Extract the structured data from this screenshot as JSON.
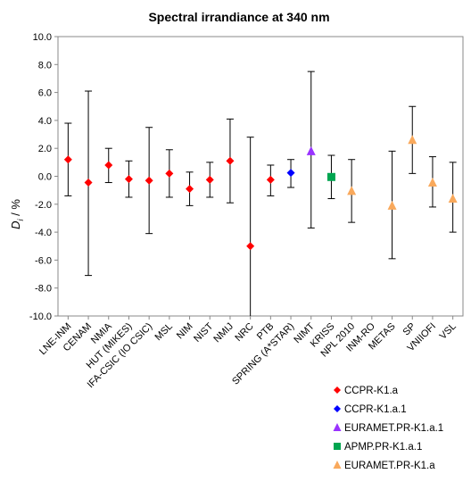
{
  "chart_data": {
    "type": "scatter",
    "title": "Spectral irrandiance at 340 nm",
    "ylabel": "D",
    "ylabel_sub": "i",
    "ylabel_unit": " / %",
    "ylim": [
      -10,
      10
    ],
    "ytick_step": 2,
    "y_ticks": [
      "-10.0",
      "-8.0",
      "-6.0",
      "-4.0",
      "-2.0",
      "0.0",
      "2.0",
      "4.0",
      "6.0",
      "8.0",
      "10.0"
    ],
    "categories": [
      "LNE-INM",
      "CENAM",
      "NMIA",
      "HUT (MIKES)",
      "IFA-CSIC (IO CSIC)",
      "MSL",
      "NIM",
      "NIST",
      "NMIJ",
      "NRC",
      "PTB",
      "SPRING (A*STAR)",
      "NIMT",
      "KRISS",
      "NPL 2010",
      "INM-RO",
      "METAS",
      "SP",
      "VNIIOFI",
      "VSL"
    ],
    "grid": false,
    "legend_position": "bottom-right",
    "series": [
      {
        "name": "CCPR-K1.a",
        "color": "#ff0000",
        "marker": "diamond",
        "points": [
          {
            "category": "LNE-INM",
            "y": 1.2,
            "low": -1.4,
            "high": 3.8
          },
          {
            "category": "CENAM",
            "y": -0.45,
            "low": -7.1,
            "high": 6.1
          },
          {
            "category": "NMIA",
            "y": 0.8,
            "low": -0.45,
            "high": 2.0
          },
          {
            "category": "HUT (MIKES)",
            "y": -0.2,
            "low": -1.5,
            "high": 1.1
          },
          {
            "category": "IFA-CSIC (IO CSIC)",
            "y": -0.3,
            "low": -4.1,
            "high": 3.5
          },
          {
            "category": "MSL",
            "y": 0.2,
            "low": -1.5,
            "high": 1.9
          },
          {
            "category": "NIM",
            "y": -0.9,
            "low": -2.1,
            "high": 0.3
          },
          {
            "category": "NIST",
            "y": -0.25,
            "low": -1.5,
            "high": 1.0
          },
          {
            "category": "NMIJ",
            "y": 1.1,
            "low": -1.9,
            "high": 4.1
          },
          {
            "category": "NRC",
            "y": -5.0,
            "low": -12.8,
            "high": 2.8
          },
          {
            "category": "PTB",
            "y": -0.25,
            "low": -1.4,
            "high": 0.8
          }
        ]
      },
      {
        "name": "CCPR-K1.a.1",
        "color": "#0000ff",
        "marker": "diamond",
        "points": [
          {
            "category": "SPRING (A*STAR)",
            "y": 0.25,
            "low": -0.8,
            "high": 1.2
          }
        ]
      },
      {
        "name": "EURAMET.PR-K1.a.1",
        "color": "#9933ff",
        "marker": "triangle",
        "points": [
          {
            "category": "NIMT",
            "y": 1.8,
            "low": -3.7,
            "high": 7.5
          }
        ]
      },
      {
        "name": "APMP.PR-K1.a.1",
        "color": "#00a550",
        "marker": "square",
        "points": [
          {
            "category": "KRISS",
            "y": -0.05,
            "low": -1.6,
            "high": 1.5
          }
        ]
      },
      {
        "name": "EURAMET.PR-K1.a",
        "color": "#f9a95c",
        "marker": "triangle",
        "points": [
          {
            "category": "NPL 2010",
            "y": -1.05,
            "low": -3.3,
            "high": 1.2
          },
          {
            "category": "METAS",
            "y": -2.1,
            "low": -5.9,
            "high": 1.8
          },
          {
            "category": "SP",
            "y": 2.6,
            "low": 0.2,
            "high": 5.0
          },
          {
            "category": "VNIIOFI",
            "y": -0.45,
            "low": -2.2,
            "high": 1.4
          },
          {
            "category": "VSL",
            "y": -1.6,
            "low": -4.0,
            "high": 1.0
          }
        ]
      }
    ]
  }
}
